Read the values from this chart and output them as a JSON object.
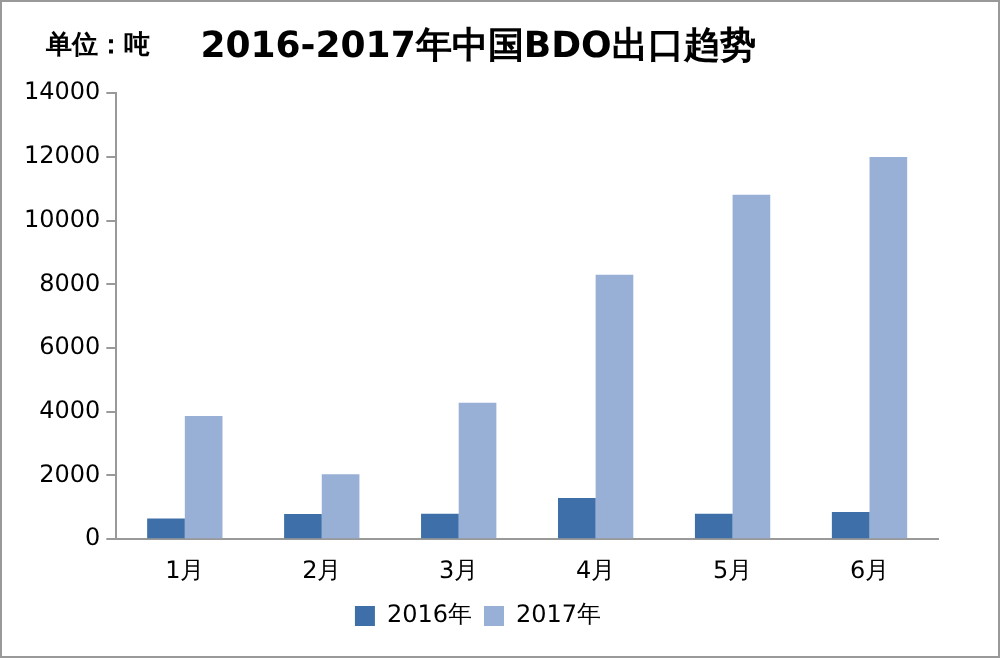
{
  "chart_data": {
    "type": "bar",
    "title": "2016-2017年中国BDO出口趋势",
    "annotations": [
      "单位：吨"
    ],
    "categories": [
      "1月",
      "2月",
      "3月",
      "4月",
      "5月",
      "6月"
    ],
    "series": [
      {
        "name": "2016年",
        "color": "#3f6fa8",
        "values": [
          650,
          790,
          800,
          1290,
          800,
          850
        ]
      },
      {
        "name": "2017年",
        "color": "#98afd6",
        "values": [
          3870,
          2040,
          4280,
          8300,
          10810,
          12000
        ]
      }
    ],
    "ylim": [
      0,
      14000
    ],
    "yticks": [
      0,
      2000,
      4000,
      6000,
      8000,
      10000,
      12000,
      14000
    ],
    "grid": false,
    "legend": "bottom"
  }
}
